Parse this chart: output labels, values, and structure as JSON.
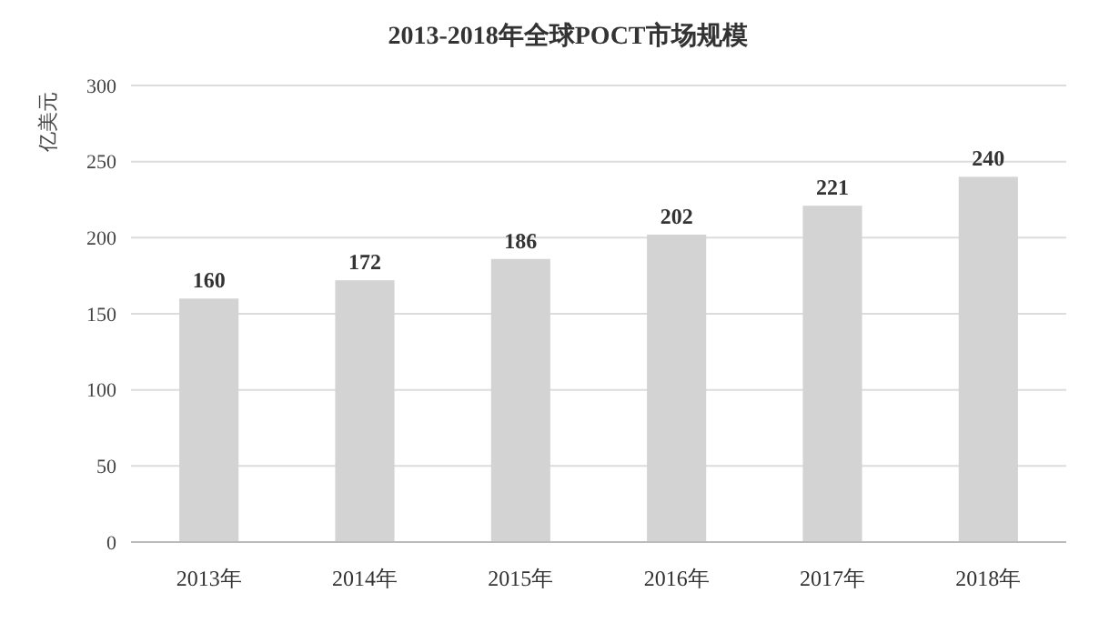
{
  "chart_data": {
    "type": "bar",
    "title": "2013-2018年全球POCT市场规模",
    "ylabel": "亿美元",
    "categories": [
      "2013年",
      "2014年",
      "2015年",
      "2016年",
      "2017年",
      "2018年"
    ],
    "values": [
      160,
      172,
      186,
      202,
      221,
      240
    ],
    "color": "#d3d3d3",
    "ylim": [
      0,
      300
    ],
    "yticks": [
      0,
      50,
      100,
      150,
      200,
      250,
      300
    ],
    "grid": "y",
    "data_labels": true
  }
}
